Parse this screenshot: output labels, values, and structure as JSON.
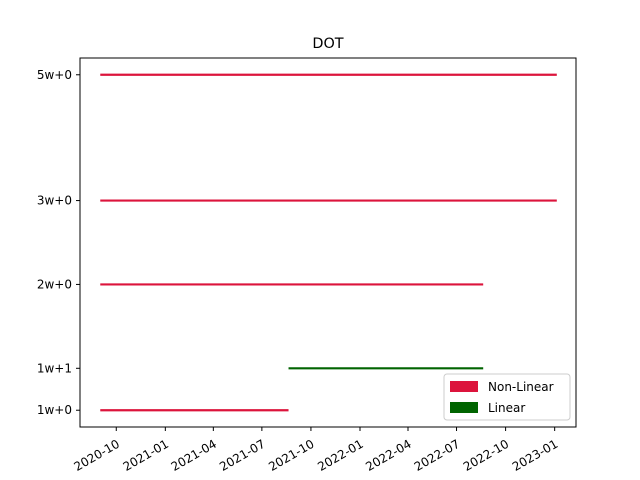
{
  "chart_data": {
    "type": "gantt",
    "title": "DOT",
    "xlabel": "",
    "ylabel": "",
    "x_axis": "date",
    "xlim": [
      "2020-07-25",
      "2023-02-10"
    ],
    "x_ticks": [
      "2020-10-01",
      "2021-01-01",
      "2021-04-01",
      "2021-07-01",
      "2021-10-01",
      "2022-01-01",
      "2022-04-01",
      "2022-07-01",
      "2022-10-01",
      "2023-01-01"
    ],
    "x_tick_labels": [
      "2020-10",
      "2021-01",
      "2021-04",
      "2021-07",
      "2021-10",
      "2022-01",
      "2022-04",
      "2022-07",
      "2022-10",
      "2023-01"
    ],
    "y_ticks": [
      {
        "label": "1w+0",
        "value": 0
      },
      {
        "label": "1w+1",
        "value": 1
      },
      {
        "label": "2w+0",
        "value": 3
      },
      {
        "label": "3w+0",
        "value": 5
      },
      {
        "label": "5w+0",
        "value": 8
      }
    ],
    "ylim": [
      -0.4,
      8.4
    ],
    "series": [
      {
        "name": "Non-Linear",
        "color": "#DC143C",
        "segments": [
          {
            "y": 0,
            "start": "2020-09-01",
            "end": "2021-08-20"
          },
          {
            "y": 3,
            "start": "2020-09-01",
            "end": "2022-08-20"
          },
          {
            "y": 5,
            "start": "2020-09-01",
            "end": "2023-01-05"
          },
          {
            "y": 8,
            "start": "2020-09-01",
            "end": "2023-01-05"
          }
        ]
      },
      {
        "name": "Linear",
        "color": "#006400",
        "segments": [
          {
            "y": 1,
            "start": "2021-08-20",
            "end": "2022-08-20"
          }
        ]
      }
    ],
    "legend_position": "lower-right",
    "grid": false
  }
}
